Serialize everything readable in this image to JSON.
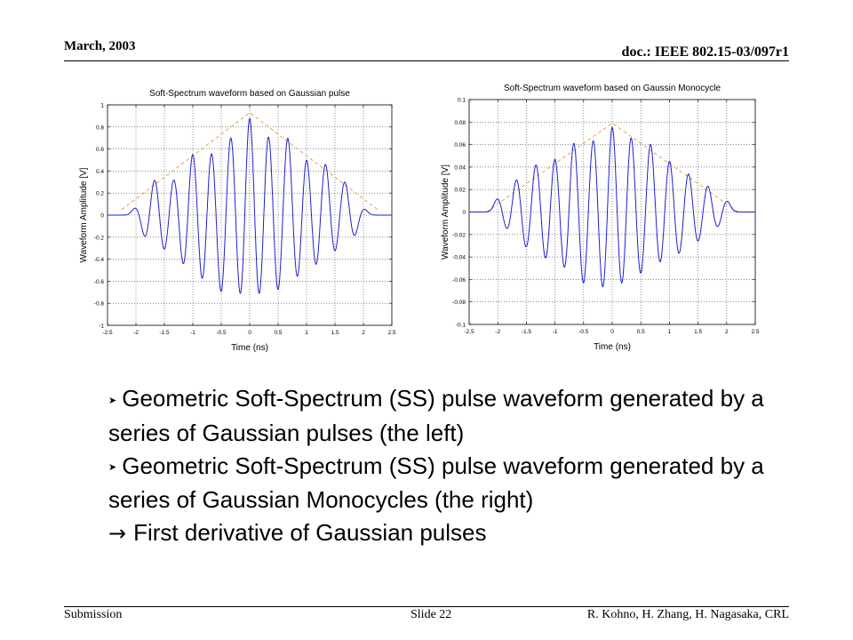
{
  "header": {
    "date": "March, 2003",
    "doc_id": "doc.: IEEE 802.15-03/097r1"
  },
  "footer": {
    "left": "Submission",
    "middle": "Slide 22",
    "right": "R. Kohno, H. Zhang, H. Nagasaka, CRL"
  },
  "bullets": {
    "item1": "Geometric Soft-Spectrum (SS) pulse waveform generated by a series of Gaussian pulses (the left)",
    "item2": "Geometric Soft-Spectrum (SS) pulse waveform generated by a series of Gaussian  Monocycles (the right)",
    "conclusion": "First derivative of Gaussian pulses"
  },
  "colors": {
    "waveform": "#1f1fd0",
    "envelope": "#e8a050",
    "grid": "#444444"
  },
  "chart_data": [
    {
      "type": "line",
      "title": "Soft-Spectrum waveform based on Gaussian pulse",
      "xlabel": "Time (ns)",
      "ylabel": "Waveform Amplitude [V]",
      "xlim": [
        -2.5,
        2.5
      ],
      "ylim": [
        -1,
        1
      ],
      "xticks": [
        -2.5,
        -2,
        -1.5,
        -1,
        -0.5,
        0,
        0.5,
        1,
        1.5,
        2,
        2.5
      ],
      "xticklabels": [
        "-2.5",
        "-2",
        "-1.5",
        "-1",
        "-0.5",
        "0",
        "0.5",
        "1",
        "1.5",
        "2",
        "2.5"
      ],
      "yticks": [
        -1,
        -0.8,
        -0.6,
        -0.4,
        -0.2,
        0,
        0.2,
        0.4,
        0.6,
        0.8,
        1
      ],
      "yticklabels": [
        "-1",
        "-0.8",
        "-0.6",
        "-0.4",
        "-0.2",
        "0",
        "0.2",
        "0.4",
        "0.6",
        "0.8",
        "1"
      ],
      "grid": true,
      "pulse": "gaussian",
      "pulse_centers": [
        -2.0,
        -1.67,
        -1.33,
        -1.0,
        -0.67,
        -0.33,
        0.0,
        0.33,
        0.67,
        1.0,
        1.33,
        1.67,
        2.0
      ],
      "pulse_peaks": [
        0.07,
        0.34,
        0.35,
        0.6,
        0.62,
        0.76,
        0.95,
        0.78,
        0.75,
        0.55,
        0.5,
        0.32,
        0.06
      ],
      "pulse_minima": [
        -0.15,
        -0.27,
        -0.4,
        -0.57,
        -0.69,
        -0.8,
        -0.78,
        -0.8,
        -0.67,
        -0.56,
        -0.43,
        -0.28,
        -0.12
      ],
      "envelope": {
        "x": [
          -2.25,
          0.0,
          2.25
        ],
        "y": [
          0.05,
          0.93,
          0.05
        ]
      }
    },
    {
      "type": "line",
      "title": "Soft-Spectrum waveform based on Gaussin Monocycle",
      "xlabel": "Time (ns)",
      "ylabel": "Waveform Amplitude [V]",
      "xlim": [
        -2.5,
        2.5
      ],
      "ylim": [
        -0.1,
        0.1
      ],
      "xticks": [
        -2.5,
        -2,
        -1.5,
        -1,
        -0.5,
        0,
        0.5,
        1,
        1.5,
        2,
        2.5
      ],
      "xticklabels": [
        "-2.5",
        "-2",
        "-1.5",
        "-1",
        "-0.5",
        "0",
        "0.5",
        "1",
        "1.5",
        "2",
        "2.5"
      ],
      "yticks": [
        -0.1,
        -0.08,
        -0.06,
        -0.04,
        -0.02,
        0,
        0.02,
        0.04,
        0.06,
        0.08,
        0.1
      ],
      "yticklabels": [
        "-0.1",
        "-0.08",
        "-0.06",
        "-0.04",
        "-0.02",
        "0",
        "0.02",
        "0.04",
        "0.06",
        "0.08",
        "0.1"
      ],
      "grid": true,
      "pulse": "monocycle",
      "pulse_centers": [
        -2.0,
        -1.67,
        -1.33,
        -1.0,
        -0.67,
        -0.33,
        0.0,
        0.33,
        0.67,
        1.0,
        1.33,
        1.67,
        2.0
      ],
      "pulse_peaks": [
        0.012,
        0.03,
        0.044,
        0.05,
        0.065,
        0.067,
        0.08,
        0.07,
        0.063,
        0.048,
        0.036,
        0.024,
        0.01
      ],
      "pulse_minima": [
        -0.008,
        -0.024,
        -0.042,
        -0.046,
        -0.06,
        -0.073,
        -0.07,
        -0.066,
        -0.05,
        -0.046,
        -0.033,
        -0.022,
        -0.006
      ],
      "envelope": {
        "x": [
          -2.2,
          0.0,
          2.2
        ],
        "y": [
          0.0,
          0.079,
          0.0
        ]
      }
    }
  ]
}
